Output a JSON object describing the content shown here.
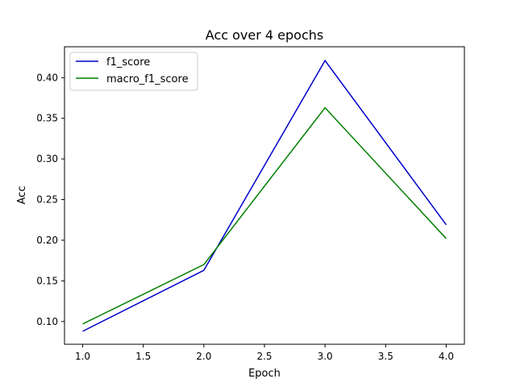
{
  "chart_data": {
    "type": "line",
    "title": "Acc over 4 epochs",
    "xlabel": "Epoch",
    "ylabel": "Acc",
    "x": [
      1,
      2,
      3,
      4
    ],
    "xlim": [
      0.85,
      4.15
    ],
    "ylim": [
      0.072,
      0.438
    ],
    "xticks": [
      1.0,
      1.5,
      2.0,
      2.5,
      3.0,
      3.5,
      4.0
    ],
    "yticks": [
      0.1,
      0.15,
      0.2,
      0.25,
      0.3,
      0.35,
      0.4
    ],
    "xtick_labels": [
      "1.0",
      "1.5",
      "2.0",
      "2.5",
      "3.0",
      "3.5",
      "4.0"
    ],
    "ytick_labels": [
      "0.10",
      "0.15",
      "0.20",
      "0.25",
      "0.30",
      "0.35",
      "0.40"
    ],
    "grid": false,
    "legend_position": "top-left",
    "series": [
      {
        "name": "f1_score",
        "color": "#0000cc",
        "values": [
          0.088,
          0.163,
          0.421,
          0.219
        ]
      },
      {
        "name": "macro_f1_score",
        "color": "#008000",
        "values": [
          0.097,
          0.17,
          0.363,
          0.202
        ]
      }
    ]
  }
}
